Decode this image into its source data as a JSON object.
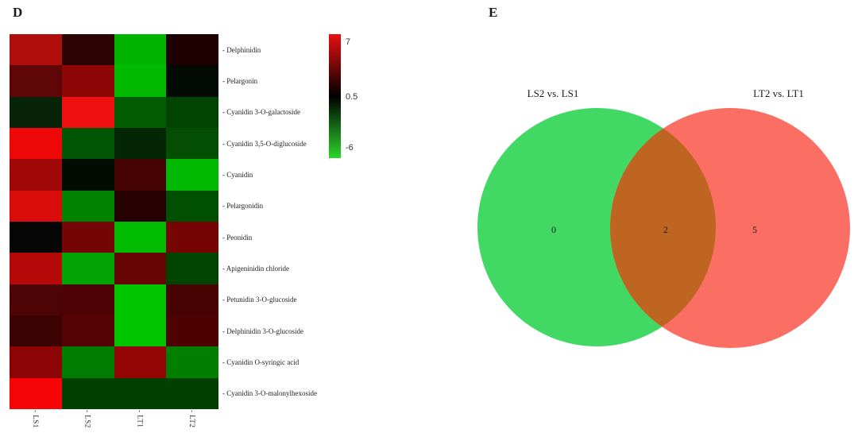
{
  "chart_data": [
    {
      "type": "heatmap",
      "panel_label": "D",
      "columns": [
        "- LS1",
        "- LS2",
        "- LT1",
        "- LT2"
      ],
      "rows": [
        "- Delphinidin",
        "- Pelargonin",
        "- Cyanidin 3-O-galactoside",
        "- Cyanidin 3,5-O-diglucoside",
        "- Cyanidin",
        "- Pelargonidin",
        "- Peonidin",
        "- Apigeninidin chloride",
        "- Petunidin 3-O-glucoside",
        "- Delphinidin 3-O-glucoside",
        "- Cyanidin O-syringic acid",
        "- Cyanidin 3-O-malonylhexoside"
      ],
      "cell_colors": [
        [
          "#b00d0d",
          "#2d0404",
          "#00b400",
          "#1e0000"
        ],
        [
          "#5f0606",
          "#8c0606",
          "#00b800",
          "#030a03"
        ],
        [
          "#082408",
          "#ee0f0f",
          "#015c01",
          "#014301"
        ],
        [
          "#ee0808",
          "#025502",
          "#042604",
          "#034e03"
        ],
        [
          "#a00808",
          "#030c03",
          "#460303",
          "#00b800"
        ],
        [
          "#d90b0b",
          "#008400",
          "#260101",
          "#015001"
        ],
        [
          "#050505",
          "#750404",
          "#00bb00",
          "#770404"
        ],
        [
          "#b50808",
          "#02a302",
          "#660303",
          "#014401"
        ],
        [
          "#4d0404",
          "#4d0303",
          "#00c400",
          "#470202"
        ],
        [
          "#3c0202",
          "#550303",
          "#00c400",
          "#4d0202"
        ],
        [
          "#8d0404",
          "#007c00",
          "#930404",
          "#007e00"
        ],
        [
          "#f50505",
          "#024002",
          "#024002",
          "#024002"
        ]
      ],
      "estimated_values": [
        [
          5.3,
          1.7,
          -5.1,
          1.3
        ],
        [
          3.1,
          4.3,
          -5.2,
          0.2
        ],
        [
          -0.6,
          7.0,
          -2.3,
          -1.6
        ],
        [
          6.9,
          -2.1,
          -0.7,
          -1.9
        ],
        [
          4.8,
          0.1,
          2.4,
          -5.2
        ],
        [
          6.4,
          -3.6,
          1.5,
          -2.0
        ],
        [
          0.5,
          3.7,
          -5.3,
          3.7
        ],
        [
          5.4,
          -4.5,
          3.3,
          -1.6
        ],
        [
          2.6,
          2.6,
          -5.6,
          2.4
        ],
        [
          2.1,
          2.8,
          -5.6,
          2.6
        ],
        [
          4.3,
          -3.3,
          4.5,
          -3.4
        ],
        [
          7.0,
          -1.5,
          -1.5,
          -1.5
        ]
      ],
      "colorbar": {
        "tick_top": "7",
        "tick_mid": "0.5",
        "tick_bottom": "-6",
        "scale_max": 7,
        "scale_mid": 0.5,
        "scale_min": -6,
        "color_top": "#e81010",
        "color_mid": "#000000",
        "color_bottom": "#2bd52b"
      }
    },
    {
      "type": "venn",
      "panel_label": "E",
      "sets": [
        {
          "label": "LS2 vs. LS1",
          "unique_count": 0,
          "color": "#41d963"
        },
        {
          "label": "LT2 vs. LT1",
          "unique_count": 5,
          "color": "#fb6e64"
        }
      ],
      "intersection": {
        "count": 2,
        "color": "#bf6522"
      }
    }
  ]
}
